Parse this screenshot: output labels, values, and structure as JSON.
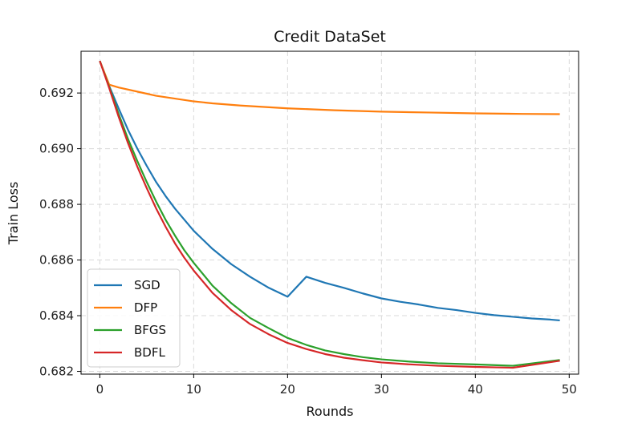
{
  "chart_data": {
    "type": "line",
    "title": "Credit DataSet",
    "xlabel": "Rounds",
    "ylabel": "Train Loss",
    "xlim": [
      -2,
      51
    ],
    "ylim": [
      0.6819,
      0.6935
    ],
    "xticks": [
      0,
      10,
      20,
      30,
      40,
      50
    ],
    "yticks": [
      0.682,
      0.684,
      0.686,
      0.688,
      0.69,
      0.692
    ],
    "ytick_labels": [
      "0.682",
      "0.684",
      "0.686",
      "0.688",
      "0.690",
      "0.692"
    ],
    "grid": true,
    "legend_position": "lower-left",
    "series": [
      {
        "name": "SGD",
        "color": "#1f77b4",
        "x": [
          0,
          1,
          2,
          3,
          4,
          5,
          6,
          7,
          8,
          9,
          10,
          12,
          14,
          16,
          18,
          20,
          22,
          24,
          26,
          28,
          30,
          32,
          34,
          36,
          38,
          40,
          42,
          44,
          46,
          48,
          49
        ],
        "y": [
          0.69315,
          0.69225,
          0.69145,
          0.69068,
          0.69,
          0.68938,
          0.6888,
          0.6883,
          0.68785,
          0.68745,
          0.68705,
          0.6864,
          0.68585,
          0.6854,
          0.685,
          0.68468,
          0.6854,
          0.68518,
          0.685,
          0.6848,
          0.68462,
          0.6845,
          0.6844,
          0.68428,
          0.6842,
          0.6841,
          0.68402,
          0.68396,
          0.6839,
          0.68386,
          0.68383
        ]
      },
      {
        "name": "DFP",
        "color": "#ff7f0e",
        "x": [
          0,
          1,
          2,
          4,
          6,
          8,
          10,
          12,
          15,
          20,
          25,
          30,
          35,
          40,
          45,
          49
        ],
        "y": [
          0.69315,
          0.6923,
          0.6922,
          0.69205,
          0.6919,
          0.6918,
          0.6917,
          0.69163,
          0.69155,
          0.69145,
          0.69138,
          0.69133,
          0.6913,
          0.69127,
          0.69125,
          0.69124
        ]
      },
      {
        "name": "BFGS",
        "color": "#2ca02c",
        "x": [
          0,
          1,
          2,
          3,
          4,
          5,
          6,
          7,
          8,
          9,
          10,
          12,
          14,
          16,
          18,
          20,
          22,
          24,
          26,
          28,
          30,
          33,
          36,
          40,
          44,
          49
        ],
        "y": [
          0.69315,
          0.69222,
          0.69125,
          0.69035,
          0.68955,
          0.6888,
          0.6881,
          0.68745,
          0.68688,
          0.68635,
          0.6859,
          0.68508,
          0.68445,
          0.68392,
          0.68355,
          0.6832,
          0.68295,
          0.68275,
          0.68262,
          0.68251,
          0.68243,
          0.68235,
          0.68229,
          0.68225,
          0.6822,
          0.68241
        ]
      },
      {
        "name": "BDFL",
        "color": "#d62728",
        "x": [
          0,
          1,
          2,
          3,
          4,
          5,
          6,
          7,
          8,
          9,
          10,
          12,
          14,
          16,
          18,
          20,
          22,
          24,
          26,
          28,
          30,
          33,
          36,
          40,
          44,
          49
        ],
        "y": [
          0.69315,
          0.69218,
          0.69115,
          0.6902,
          0.68935,
          0.68858,
          0.68785,
          0.6872,
          0.6866,
          0.68608,
          0.68562,
          0.68482,
          0.6842,
          0.6837,
          0.68333,
          0.68302,
          0.6828,
          0.68262,
          0.68249,
          0.6824,
          0.68232,
          0.68225,
          0.6822,
          0.68216,
          0.68213,
          0.68238
        ]
      }
    ]
  }
}
